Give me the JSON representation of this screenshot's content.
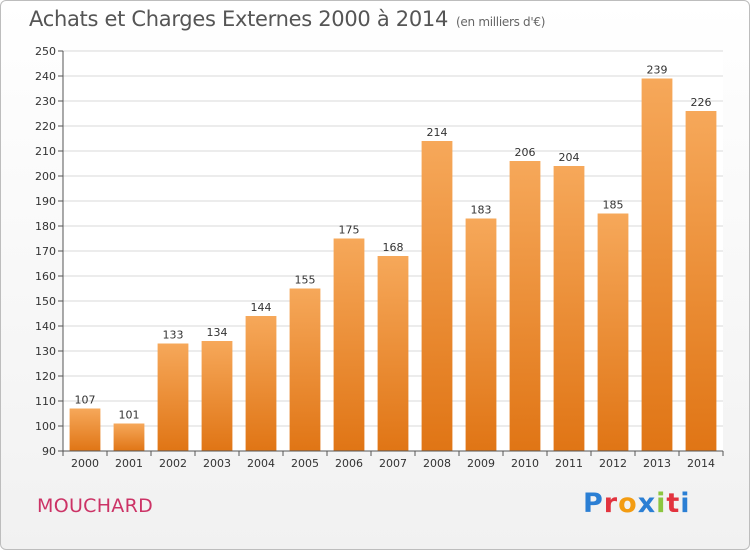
{
  "title": "Achats et Charges Externes 2000 à 2014",
  "subtitle": "(en milliers d'€)",
  "commune": "MOUCHARD",
  "logo": {
    "text": "Proxiti",
    "letter_colors": [
      "#2b7fd4",
      "#e2333e",
      "#f39c12",
      "#2b7fd4",
      "#8cc63f",
      "#e2333e",
      "#2b7fd4"
    ]
  },
  "colors": {
    "bar_top": "#f6a85a",
    "bar_bottom": "#e07515",
    "grid": "#d9d9d9",
    "axis": "#555555",
    "plot_bg": "#ffffff"
  },
  "chart_data": {
    "type": "bar",
    "categories": [
      "2000",
      "2001",
      "2002",
      "2003",
      "2004",
      "2005",
      "2006",
      "2007",
      "2008",
      "2009",
      "2010",
      "2011",
      "2012",
      "2013",
      "2014"
    ],
    "values": [
      107,
      101,
      133,
      134,
      144,
      155,
      175,
      168,
      214,
      183,
      206,
      204,
      185,
      239,
      226
    ],
    "ylim": [
      90,
      250
    ],
    "yticks": [
      90,
      100,
      110,
      120,
      130,
      140,
      150,
      160,
      170,
      180,
      190,
      200,
      210,
      220,
      230,
      240,
      250
    ],
    "grid": true,
    "legend": "none"
  }
}
